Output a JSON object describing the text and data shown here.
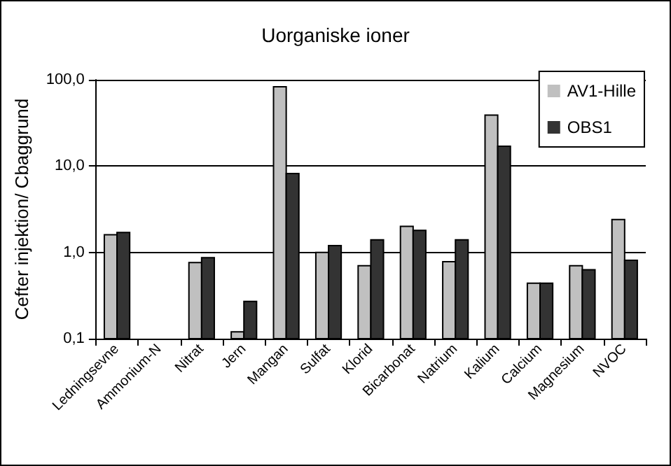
{
  "chart_data": {
    "type": "bar",
    "title": "Uorganiske ioner",
    "ylabel": "Cefter injektion/ Cbaggrund",
    "categories": [
      "Ledningsevne",
      "Ammonium-N",
      "Nitrat",
      "Jern",
      "Mangan",
      "Sulfat",
      "Klorid",
      "Bicarbonat",
      "Natrium",
      "Kalium",
      "Calcium",
      "Magnesium",
      "NVOC"
    ],
    "series": [
      {
        "name": "AV1-Hille",
        "color": "#c0c0c0",
        "values": [
          1.6,
          null,
          0.76,
          0.12,
          83,
          1.0,
          0.7,
          2.0,
          0.78,
          39,
          0.44,
          0.7,
          2.4
        ]
      },
      {
        "name": "OBS1",
        "color": "#333333",
        "values": [
          1.7,
          null,
          0.87,
          0.27,
          8.2,
          1.2,
          1.4,
          1.8,
          1.4,
          17,
          0.44,
          0.63,
          0.81
        ]
      }
    ],
    "log": true,
    "ylim": [
      0.1,
      100
    ],
    "yticks": [
      {
        "value": 0.1,
        "label": "0,1"
      },
      {
        "value": 1,
        "label": "1,0"
      },
      {
        "value": 10,
        "label": "10,0"
      },
      {
        "value": 100,
        "label": "100,0"
      }
    ],
    "grid": "y",
    "legend": "top right"
  }
}
